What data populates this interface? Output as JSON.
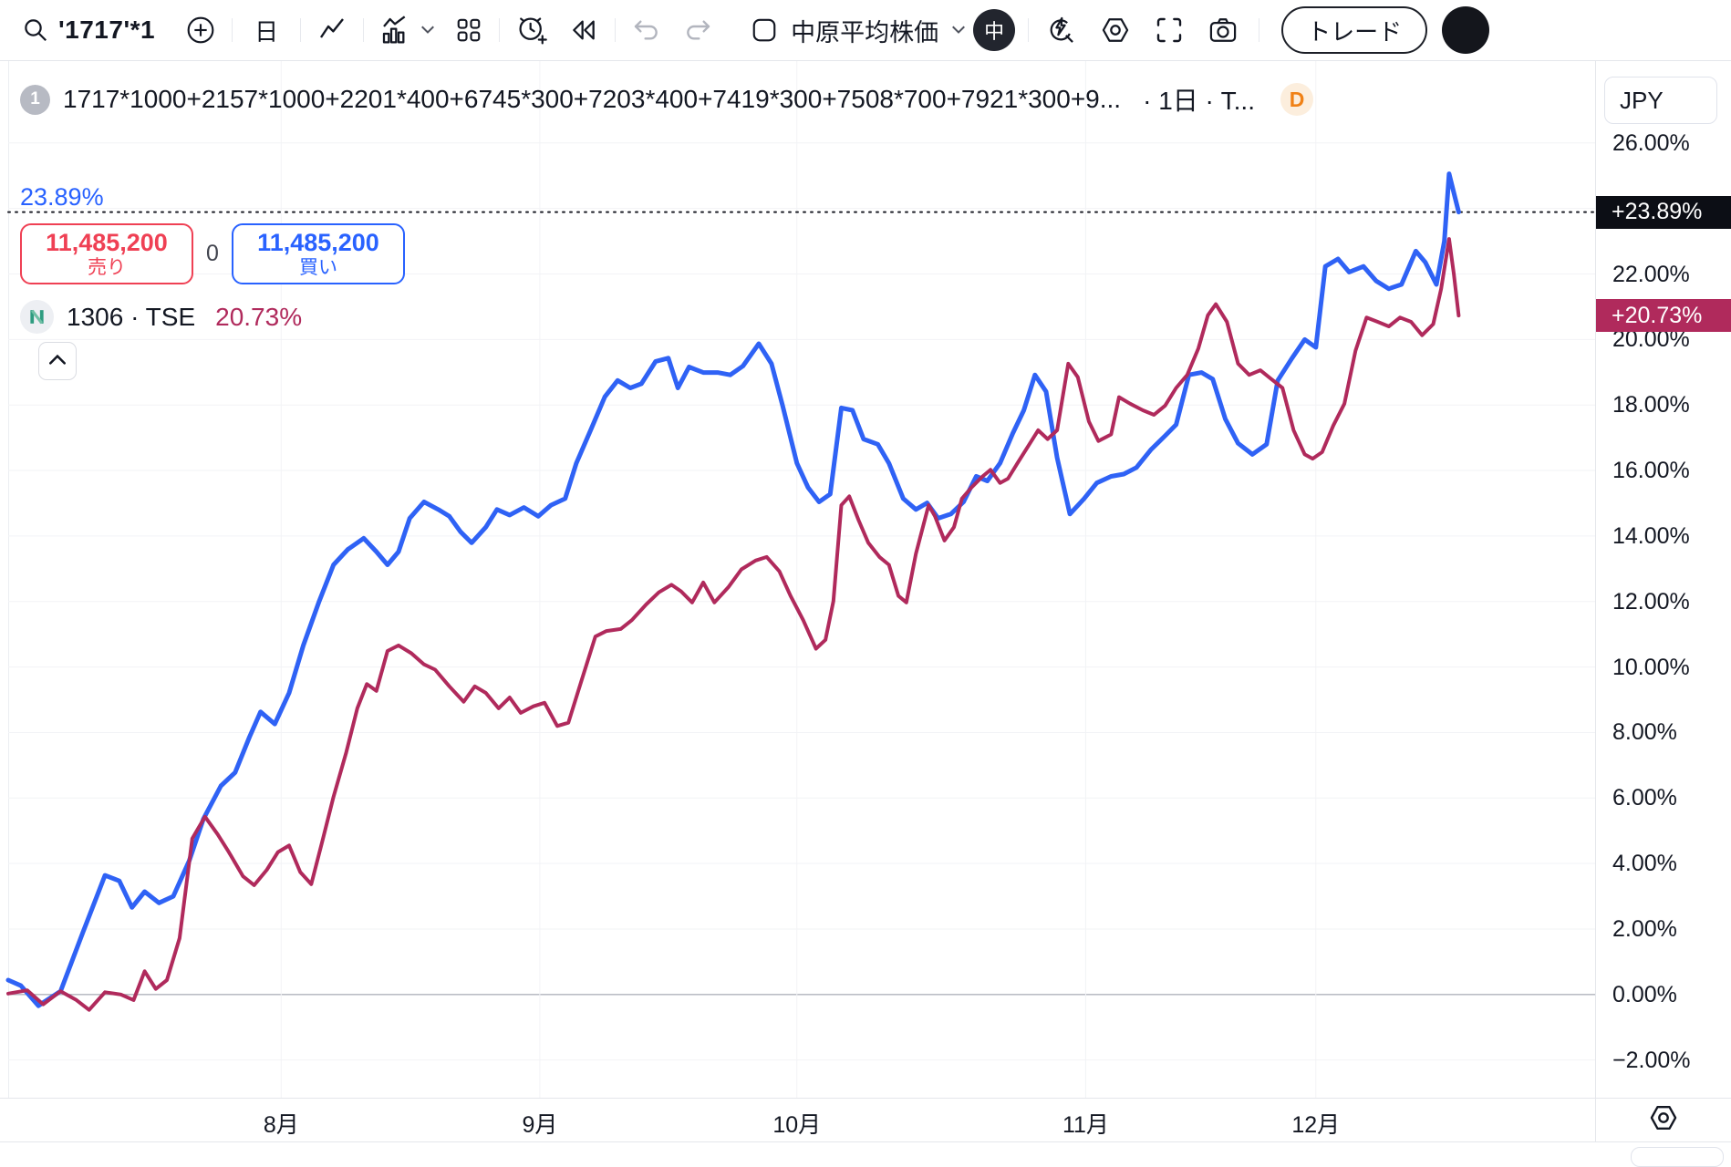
{
  "toolbar": {
    "symbol_search": "'1717'*1",
    "interval": "日",
    "layout_name": "中原平均株価",
    "account_badge": "中",
    "trade_button": "トレード"
  },
  "header": {
    "series_number": "1",
    "title": "1717*1000+2157*1000+2201*400+6745*300+7203*400+7419*300+7508*700+7921*300+9...",
    "title_suffix": "· 1日 · T...",
    "data_window_badge": "D",
    "change_percent": "23.89%",
    "sell_button": {
      "price": "11,485,200",
      "label": "売り"
    },
    "spread": "0",
    "buy_button": {
      "price": "11,485,200",
      "label": "買い"
    },
    "compare_legend": {
      "logo_letter": "N",
      "name": "1306 · TSE",
      "change": "20.73%"
    }
  },
  "price_axis": {
    "currency": "JPY",
    "main_price_label": "+23.89%",
    "compare_price_label": "+20.73%"
  },
  "colors": {
    "main_line": "#2f62f5",
    "compare_line": "#b02a5c",
    "sell_red": "#ef4054",
    "buy_blue": "#2962ff",
    "tag_main_bg": "#0c0e15",
    "tag_compare_bg": "#b02a5c",
    "d_badge": "#f08116",
    "grid": "#f2f3f6",
    "zero_line": "#b0b3bc"
  },
  "chart_data": {
    "type": "line",
    "title": "1717*1000+2157*1000+2201*400+6745*300+7203*400+7419*300+7508*700+7921*300+9...",
    "unit": "%",
    "ylim": [
      -3.15,
      28.5
    ],
    "grid_ticks": [
      26,
      24,
      22,
      20,
      18,
      16,
      14,
      12,
      10,
      8,
      6,
      4,
      2,
      0,
      -2
    ],
    "y_ticks": [
      {
        "v": 26,
        "label": "26.00%"
      },
      {
        "v": 22,
        "label": "22.00%"
      },
      {
        "v": 20,
        "label": "20.00%"
      },
      {
        "v": 18,
        "label": "18.00%"
      },
      {
        "v": 16,
        "label": "16.00%"
      },
      {
        "v": 14,
        "label": "14.00%"
      },
      {
        "v": 12,
        "label": "12.00%"
      },
      {
        "v": 10,
        "label": "10.00%"
      },
      {
        "v": 8,
        "label": "8.00%"
      },
      {
        "v": 6,
        "label": "6.00%"
      },
      {
        "v": 4,
        "label": "4.00%"
      },
      {
        "v": 2,
        "label": "2.00%"
      },
      {
        "v": 0,
        "label": "0.00%"
      },
      {
        "v": -2,
        "label": "−2.00%"
      }
    ],
    "x_ticks": [
      {
        "f": 0.172,
        "label": "8月"
      },
      {
        "f": 0.335,
        "label": "9月"
      },
      {
        "f": 0.497,
        "label": "10月"
      },
      {
        "f": 0.679,
        "label": "11月"
      },
      {
        "f": 0.824,
        "label": "12月"
      }
    ],
    "zero_line": 0,
    "reference_line": 23.89,
    "last_values": {
      "main": 23.89,
      "compare": 20.73
    },
    "series": [
      {
        "name": "basket 1717*1000+2157*1000+...",
        "color": "#2f62f5",
        "width": 5,
        "points": [
          [
            0.0,
            0.44
          ],
          [
            0.008,
            0.27
          ],
          [
            0.019,
            -0.34
          ],
          [
            0.033,
            0.1
          ],
          [
            0.047,
            1.89
          ],
          [
            0.061,
            3.64
          ],
          [
            0.07,
            3.47
          ],
          [
            0.078,
            2.66
          ],
          [
            0.086,
            3.14
          ],
          [
            0.095,
            2.8
          ],
          [
            0.104,
            3.0
          ],
          [
            0.114,
            4.08
          ],
          [
            0.123,
            5.36
          ],
          [
            0.134,
            6.37
          ],
          [
            0.143,
            6.78
          ],
          [
            0.152,
            7.86
          ],
          [
            0.159,
            8.63
          ],
          [
            0.168,
            8.26
          ],
          [
            0.177,
            9.21
          ],
          [
            0.186,
            10.66
          ],
          [
            0.196,
            12.01
          ],
          [
            0.205,
            13.12
          ],
          [
            0.214,
            13.59
          ],
          [
            0.224,
            13.93
          ],
          [
            0.232,
            13.52
          ],
          [
            0.239,
            13.12
          ],
          [
            0.246,
            13.52
          ],
          [
            0.253,
            14.54
          ],
          [
            0.262,
            15.04
          ],
          [
            0.271,
            14.81
          ],
          [
            0.278,
            14.6
          ],
          [
            0.285,
            14.13
          ],
          [
            0.292,
            13.79
          ],
          [
            0.301,
            14.27
          ],
          [
            0.308,
            14.81
          ],
          [
            0.316,
            14.64
          ],
          [
            0.325,
            14.87
          ],
          [
            0.334,
            14.6
          ],
          [
            0.342,
            14.94
          ],
          [
            0.351,
            15.14
          ],
          [
            0.358,
            16.22
          ],
          [
            0.367,
            17.23
          ],
          [
            0.376,
            18.25
          ],
          [
            0.384,
            18.75
          ],
          [
            0.392,
            18.52
          ],
          [
            0.399,
            18.65
          ],
          [
            0.408,
            19.33
          ],
          [
            0.416,
            19.43
          ],
          [
            0.422,
            18.52
          ],
          [
            0.429,
            19.16
          ],
          [
            0.438,
            18.99
          ],
          [
            0.447,
            18.99
          ],
          [
            0.455,
            18.92
          ],
          [
            0.463,
            19.19
          ],
          [
            0.473,
            19.87
          ],
          [
            0.481,
            19.26
          ],
          [
            0.488,
            17.98
          ],
          [
            0.497,
            16.22
          ],
          [
            0.504,
            15.48
          ],
          [
            0.511,
            15.04
          ],
          [
            0.518,
            15.28
          ],
          [
            0.525,
            17.91
          ],
          [
            0.532,
            17.84
          ],
          [
            0.539,
            16.96
          ],
          [
            0.548,
            16.8
          ],
          [
            0.555,
            16.22
          ],
          [
            0.564,
            15.14
          ],
          [
            0.572,
            14.81
          ],
          [
            0.579,
            15.01
          ],
          [
            0.586,
            14.54
          ],
          [
            0.594,
            14.67
          ],
          [
            0.602,
            15.04
          ],
          [
            0.61,
            15.82
          ],
          [
            0.617,
            15.68
          ],
          [
            0.625,
            16.22
          ],
          [
            0.633,
            17.13
          ],
          [
            0.64,
            17.84
          ],
          [
            0.647,
            18.92
          ],
          [
            0.654,
            18.41
          ],
          [
            0.661,
            16.39
          ],
          [
            0.669,
            14.67
          ],
          [
            0.678,
            15.14
          ],
          [
            0.686,
            15.62
          ],
          [
            0.695,
            15.82
          ],
          [
            0.703,
            15.89
          ],
          [
            0.711,
            16.09
          ],
          [
            0.72,
            16.63
          ],
          [
            0.729,
            17.06
          ],
          [
            0.736,
            17.4
          ],
          [
            0.744,
            18.92
          ],
          [
            0.752,
            18.99
          ],
          [
            0.759,
            18.79
          ],
          [
            0.767,
            17.57
          ],
          [
            0.775,
            16.83
          ],
          [
            0.784,
            16.49
          ],
          [
            0.793,
            16.8
          ],
          [
            0.8,
            18.75
          ],
          [
            0.809,
            19.43
          ],
          [
            0.817,
            20.0
          ],
          [
            0.824,
            19.76
          ],
          [
            0.83,
            22.23
          ],
          [
            0.838,
            22.46
          ],
          [
            0.845,
            22.06
          ],
          [
            0.854,
            22.23
          ],
          [
            0.862,
            21.79
          ],
          [
            0.87,
            21.55
          ],
          [
            0.878,
            21.68
          ],
          [
            0.887,
            22.7
          ],
          [
            0.893,
            22.36
          ],
          [
            0.9,
            21.68
          ],
          [
            0.905,
            23.0
          ],
          [
            0.908,
            25.06
          ],
          [
            0.914,
            23.89
          ]
        ]
      },
      {
        "name": "1306 TSE",
        "color": "#b02a5c",
        "width": 4,
        "points": [
          [
            0.0,
            0.03
          ],
          [
            0.012,
            0.13
          ],
          [
            0.022,
            -0.3
          ],
          [
            0.033,
            0.1
          ],
          [
            0.043,
            -0.17
          ],
          [
            0.051,
            -0.47
          ],
          [
            0.061,
            0.07
          ],
          [
            0.071,
            0.0
          ],
          [
            0.079,
            -0.17
          ],
          [
            0.086,
            0.71
          ],
          [
            0.093,
            0.17
          ],
          [
            0.1,
            0.44
          ],
          [
            0.108,
            1.72
          ],
          [
            0.116,
            4.76
          ],
          [
            0.124,
            5.43
          ],
          [
            0.132,
            4.89
          ],
          [
            0.139,
            4.35
          ],
          [
            0.148,
            3.61
          ],
          [
            0.155,
            3.34
          ],
          [
            0.163,
            3.81
          ],
          [
            0.17,
            4.35
          ],
          [
            0.177,
            4.55
          ],
          [
            0.184,
            3.74
          ],
          [
            0.191,
            3.37
          ],
          [
            0.198,
            4.69
          ],
          [
            0.205,
            6.04
          ],
          [
            0.213,
            7.39
          ],
          [
            0.22,
            8.74
          ],
          [
            0.226,
            9.48
          ],
          [
            0.232,
            9.27
          ],
          [
            0.239,
            10.49
          ],
          [
            0.246,
            10.66
          ],
          [
            0.254,
            10.42
          ],
          [
            0.262,
            10.08
          ],
          [
            0.269,
            9.92
          ],
          [
            0.278,
            9.41
          ],
          [
            0.287,
            8.94
          ],
          [
            0.294,
            9.41
          ],
          [
            0.301,
            9.21
          ],
          [
            0.309,
            8.74
          ],
          [
            0.316,
            9.07
          ],
          [
            0.323,
            8.6
          ],
          [
            0.331,
            8.8
          ],
          [
            0.338,
            8.91
          ],
          [
            0.346,
            8.2
          ],
          [
            0.353,
            8.3
          ],
          [
            0.361,
            9.54
          ],
          [
            0.37,
            10.93
          ],
          [
            0.377,
            11.1
          ],
          [
            0.386,
            11.16
          ],
          [
            0.393,
            11.43
          ],
          [
            0.402,
            11.91
          ],
          [
            0.41,
            12.28
          ],
          [
            0.418,
            12.51
          ],
          [
            0.424,
            12.31
          ],
          [
            0.431,
            11.97
          ],
          [
            0.438,
            12.58
          ],
          [
            0.445,
            11.97
          ],
          [
            0.454,
            12.45
          ],
          [
            0.462,
            12.98
          ],
          [
            0.471,
            13.25
          ],
          [
            0.478,
            13.36
          ],
          [
            0.486,
            12.92
          ],
          [
            0.493,
            12.17
          ],
          [
            0.501,
            11.43
          ],
          [
            0.509,
            10.56
          ],
          [
            0.515,
            10.83
          ],
          [
            0.52,
            12.01
          ],
          [
            0.525,
            14.94
          ],
          [
            0.53,
            15.21
          ],
          [
            0.536,
            14.47
          ],
          [
            0.542,
            13.79
          ],
          [
            0.549,
            13.36
          ],
          [
            0.555,
            13.12
          ],
          [
            0.561,
            12.17
          ],
          [
            0.566,
            11.97
          ],
          [
            0.572,
            13.46
          ],
          [
            0.58,
            14.94
          ],
          [
            0.584,
            14.6
          ],
          [
            0.59,
            13.86
          ],
          [
            0.596,
            14.27
          ],
          [
            0.601,
            15.14
          ],
          [
            0.607,
            15.48
          ],
          [
            0.614,
            15.82
          ],
          [
            0.619,
            16.02
          ],
          [
            0.625,
            15.62
          ],
          [
            0.63,
            15.75
          ],
          [
            0.636,
            16.22
          ],
          [
            0.643,
            16.76
          ],
          [
            0.649,
            17.23
          ],
          [
            0.655,
            16.96
          ],
          [
            0.661,
            17.23
          ],
          [
            0.668,
            19.26
          ],
          [
            0.674,
            18.85
          ],
          [
            0.681,
            17.5
          ],
          [
            0.687,
            16.9
          ],
          [
            0.695,
            17.1
          ],
          [
            0.7,
            18.24
          ],
          [
            0.707,
            18.04
          ],
          [
            0.715,
            17.84
          ],
          [
            0.722,
            17.7
          ],
          [
            0.729,
            17.98
          ],
          [
            0.736,
            18.52
          ],
          [
            0.743,
            18.92
          ],
          [
            0.75,
            19.73
          ],
          [
            0.756,
            20.74
          ],
          [
            0.761,
            21.08
          ],
          [
            0.768,
            20.54
          ],
          [
            0.775,
            19.26
          ],
          [
            0.782,
            18.92
          ],
          [
            0.789,
            19.06
          ],
          [
            0.796,
            18.79
          ],
          [
            0.803,
            18.52
          ],
          [
            0.81,
            17.23
          ],
          [
            0.817,
            16.49
          ],
          [
            0.822,
            16.36
          ],
          [
            0.828,
            16.56
          ],
          [
            0.835,
            17.37
          ],
          [
            0.842,
            18.04
          ],
          [
            0.849,
            19.66
          ],
          [
            0.856,
            20.67
          ],
          [
            0.863,
            20.54
          ],
          [
            0.87,
            20.4
          ],
          [
            0.877,
            20.67
          ],
          [
            0.884,
            20.54
          ],
          [
            0.891,
            20.13
          ],
          [
            0.898,
            20.47
          ],
          [
            0.903,
            21.55
          ],
          [
            0.908,
            23.07
          ],
          [
            0.911,
            22.0
          ],
          [
            0.914,
            20.73
          ]
        ]
      }
    ]
  }
}
